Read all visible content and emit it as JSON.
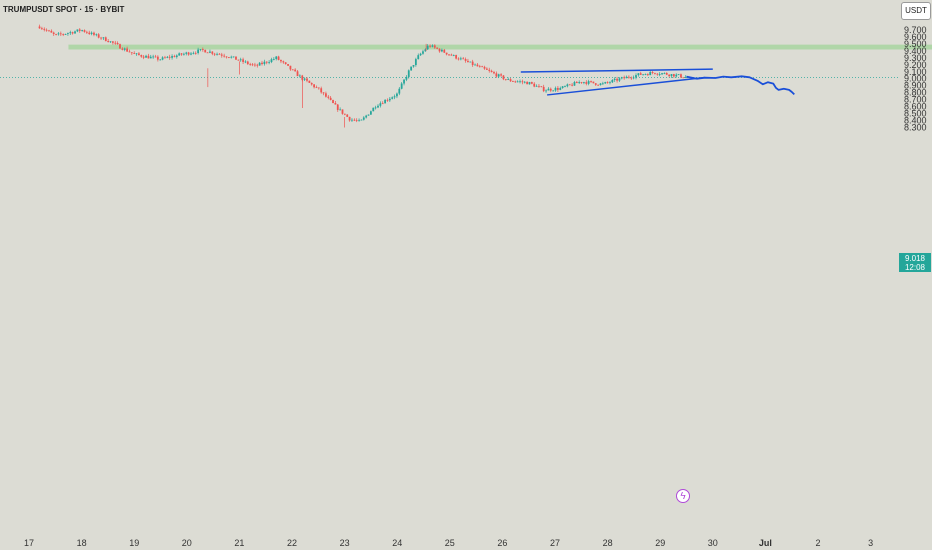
{
  "header": {
    "symbol_title": "TRUMPUSDT SPOT · 15 · BYBIT",
    "currency_button": "USDT"
  },
  "price_tag": {
    "price": "9.018",
    "countdown": "12:08"
  },
  "colors": {
    "up": "#26a69a",
    "down": "#ef5350",
    "zone": "#a8d5a0",
    "pattern_line": "#1a4fd8",
    "projection": "#1a4fd8",
    "price_line": "#26a69a",
    "event_icon": "#b04ad9"
  },
  "chart_data": {
    "type": "candlestick",
    "title": "TRUMPUSDT SPOT · 15 · BYBIT",
    "timeframe": "15",
    "exchange": "BYBIT",
    "currency": "USDT",
    "last_price": 9.018,
    "countdown": "12:08",
    "ylim": [
      8.27,
      9.77
    ],
    "y_ticks": [
      "9.700",
      "9.600",
      "9.500",
      "9.400",
      "9.300",
      "9.200",
      "9.100",
      "9.000",
      "8.900",
      "8.800",
      "8.700",
      "8.600",
      "8.500",
      "8.400",
      "8.300"
    ],
    "x_ticks": [
      "17",
      "18",
      "19",
      "20",
      "21",
      "22",
      "23",
      "24",
      "25",
      "26",
      "27",
      "28",
      "29",
      "30",
      "Jul",
      "2",
      "3"
    ],
    "price_path": [
      [
        17.2,
        9.75
      ],
      [
        17.5,
        9.62
      ],
      [
        18.0,
        9.7
      ],
      [
        18.5,
        9.55
      ],
      [
        19.0,
        9.35
      ],
      [
        19.5,
        9.28
      ],
      [
        19.9,
        9.35
      ],
      [
        20.3,
        9.41
      ],
      [
        20.8,
        9.32
      ],
      [
        21.3,
        9.18
      ],
      [
        21.7,
        9.3
      ],
      [
        22.2,
        9.0
      ],
      [
        22.5,
        8.85
      ],
      [
        22.7,
        8.7
      ],
      [
        22.9,
        8.55
      ],
      [
        23.1,
        8.42
      ],
      [
        23.3,
        8.38
      ],
      [
        23.6,
        8.62
      ],
      [
        24.0,
        8.78
      ],
      [
        24.2,
        9.08
      ],
      [
        24.4,
        9.32
      ],
      [
        24.6,
        9.48
      ],
      [
        24.9,
        9.38
      ],
      [
        25.3,
        9.25
      ],
      [
        25.7,
        9.12
      ],
      [
        26.1,
        8.98
      ],
      [
        26.5,
        8.94
      ],
      [
        26.8,
        8.84
      ],
      [
        27.1,
        8.86
      ],
      [
        27.5,
        8.96
      ],
      [
        27.9,
        8.92
      ],
      [
        28.2,
        8.99
      ],
      [
        28.6,
        9.06
      ],
      [
        28.9,
        9.09
      ],
      [
        29.3,
        9.05
      ],
      [
        29.5,
        9.02
      ]
    ],
    "resistance_zone": {
      "from": 9.42,
      "to": 9.49,
      "x_start": 17.75,
      "x_end": 34.8
    },
    "pattern_lines": [
      {
        "points": [
          [
            26.35,
            9.096
          ],
          [
            30.0,
            9.137
          ]
        ]
      },
      {
        "points": [
          [
            26.85,
            8.767
          ],
          [
            29.85,
            9.018
          ]
        ]
      }
    ],
    "projection_path": [
      [
        29.5,
        9.03
      ],
      [
        29.7,
        9.0
      ],
      [
        29.85,
        9.015
      ],
      [
        30.05,
        9.01
      ],
      [
        30.2,
        9.03
      ],
      [
        30.35,
        9.02
      ],
      [
        30.55,
        9.035
      ],
      [
        30.7,
        9.02
      ],
      [
        30.85,
        8.97
      ],
      [
        30.95,
        8.92
      ],
      [
        31.05,
        8.95
      ],
      [
        31.15,
        8.93
      ],
      [
        31.2,
        8.87
      ],
      [
        31.25,
        8.84
      ],
      [
        31.35,
        8.855
      ],
      [
        31.45,
        8.84
      ],
      [
        31.5,
        8.81
      ],
      [
        31.55,
        8.775
      ]
    ]
  }
}
